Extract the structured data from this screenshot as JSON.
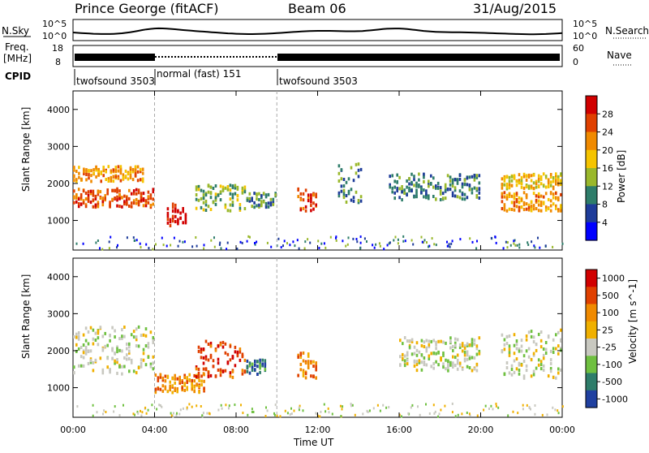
{
  "header": {
    "station": "Prince George (fitACF)",
    "beam": "Beam 06",
    "date": "31/Aug/2015"
  },
  "noise_panel": {
    "left_label": "N.Sky",
    "right_label": "N.Search",
    "tick_top": "10^5",
    "tick_bottom": "10^0"
  },
  "freq_panel": {
    "label_line1": "Freq.",
    "label_line2": "[MHz]",
    "right_label": "Nave",
    "tick_top": "18",
    "tick_bottom": "8",
    "right_tick_top": "60",
    "right_tick_bottom": "0"
  },
  "cpid": {
    "label": "CPID",
    "segments": [
      {
        "name": "twofsound 3503",
        "start_hour": 0
      },
      {
        "name": "normal (fast) 151",
        "start_hour": 4
      },
      {
        "name": "twofsound 3503",
        "start_hour": 10
      }
    ]
  },
  "colors": {
    "power": [
      "#0000ff",
      "#1e3c9a",
      "#2e7d6a",
      "#9ab82b",
      "#f5c400",
      "#f08a00",
      "#e04000",
      "#d10000"
    ],
    "velocity": [
      "#2040a0",
      "#2e7d6a",
      "#6fc040",
      "#c8c8c0",
      "#f0b000",
      "#f08a00",
      "#e04000",
      "#d10000"
    ]
  },
  "chart_data": [
    {
      "type": "heatmap",
      "name": "power",
      "ylabel": "Slant Range [km]",
      "xlabel": "Time UT",
      "xticks": [
        "00:00",
        "04:00",
        "08:00",
        "12:00",
        "16:00",
        "20:00",
        "00:00"
      ],
      "yticks": [
        "1000",
        "2000",
        "3000",
        "4000"
      ],
      "ylim": [
        200,
        4500
      ],
      "xlim_hours": [
        0,
        24
      ],
      "colorbar_label": "Power [dB]",
      "colorbar_ticks": [
        "4",
        "8",
        "12",
        "16",
        "20",
        "24",
        "28"
      ],
      "bands": [
        {
          "t0": 0.0,
          "t1": 4.0,
          "r0": 1400,
          "r1": 1900,
          "level": 6
        },
        {
          "t0": 0.0,
          "t1": 3.5,
          "r0": 2100,
          "r1": 2500,
          "level": 5
        },
        {
          "t0": 4.6,
          "t1": 5.6,
          "r0": 900,
          "r1": 1500,
          "level": 7
        },
        {
          "t0": 6.0,
          "t1": 8.5,
          "r0": 1300,
          "r1": 2000,
          "level": 3
        },
        {
          "t0": 8.5,
          "t1": 10.0,
          "r0": 1400,
          "r1": 1800,
          "level": 2
        },
        {
          "t0": 11.0,
          "t1": 12.0,
          "r0": 1300,
          "r1": 1900,
          "level": 6
        },
        {
          "t0": 13.0,
          "t1": 14.2,
          "r0": 1500,
          "r1": 2600,
          "level": 2
        },
        {
          "t0": 15.5,
          "t1": 20.0,
          "r0": 1600,
          "r1": 2300,
          "level": 2
        },
        {
          "t0": 21.0,
          "t1": 24.0,
          "r0": 1300,
          "r1": 1800,
          "level": 5
        },
        {
          "t0": 21.0,
          "t1": 24.0,
          "r0": 1900,
          "r1": 2300,
          "level": 4
        }
      ]
    },
    {
      "type": "heatmap",
      "name": "velocity",
      "ylabel": "Slant Range [km]",
      "xlabel": "Time UT",
      "xticks": [
        "00:00",
        "04:00",
        "08:00",
        "12:00",
        "16:00",
        "20:00",
        "00:00"
      ],
      "yticks": [
        "1000",
        "2000",
        "3000",
        "4000"
      ],
      "ylim": [
        200,
        4500
      ],
      "xlim_hours": [
        0,
        24
      ],
      "colorbar_label": "Velocity [m s^-1]",
      "colorbar_ticks": [
        "1000",
        "500",
        "100",
        "25",
        "-25",
        "-100",
        "-500",
        "-1000"
      ],
      "bands": [
        {
          "t0": 0.0,
          "t1": 4.0,
          "r0": 1400,
          "r1": 2700,
          "level": 3
        },
        {
          "t0": 4.0,
          "t1": 6.5,
          "r0": 900,
          "r1": 1400,
          "level": 5
        },
        {
          "t0": 6.0,
          "t1": 8.5,
          "r0": 1300,
          "r1": 2300,
          "level": 6
        },
        {
          "t0": 8.5,
          "t1": 9.5,
          "r0": 1400,
          "r1": 1800,
          "level": 1
        },
        {
          "t0": 11.0,
          "t1": 12.0,
          "r0": 1300,
          "r1": 2000,
          "level": 5
        },
        {
          "t0": 16.0,
          "t1": 20.0,
          "r0": 1500,
          "r1": 2400,
          "level": 3
        },
        {
          "t0": 21.0,
          "t1": 24.0,
          "r0": 1300,
          "r1": 2600,
          "level": 3
        }
      ]
    }
  ]
}
